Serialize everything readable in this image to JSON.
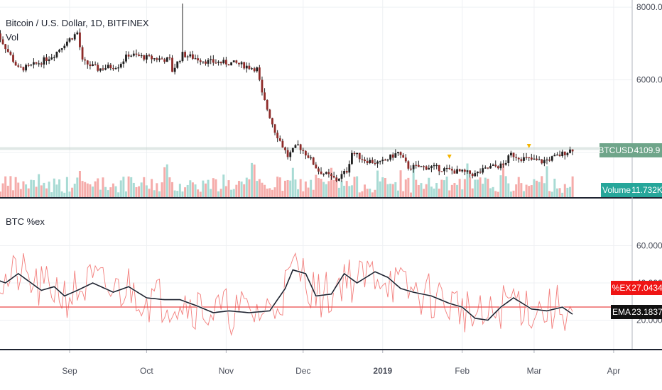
{
  "chart_data": [
    {
      "type": "candlestick",
      "title": "Bitcoin / U.S. Dollar, 1D, BITFINEX",
      "indicator_label": "Vol",
      "x_tick_labels": [
        "Sep",
        "Oct",
        "Nov",
        "Dec",
        "2019",
        "Feb",
        "Mar",
        "Apr"
      ],
      "y_tick_labels": [
        "8000.0",
        "6000.0"
      ],
      "ylim": [
        3000,
        8000
      ],
      "grid": true,
      "series": [
        {
          "name": "BTCUSD",
          "close_path": [
            [
              "2018-08-03",
              7400
            ],
            [
              "2018-08-07",
              6900
            ],
            [
              "2018-08-12",
              6300
            ],
            [
              "2018-08-16",
              6350
            ],
            [
              "2018-08-21",
              6500
            ],
            [
              "2018-08-26",
              6700
            ],
            [
              "2018-08-30",
              7000
            ],
            [
              "2018-09-04",
              7300
            ],
            [
              "2018-09-06",
              6500
            ],
            [
              "2018-09-12",
              6300
            ],
            [
              "2018-09-20",
              6400
            ],
            [
              "2018-09-24",
              6700
            ],
            [
              "2018-10-02",
              6600
            ],
            [
              "2018-10-10",
              6550
            ],
            [
              "2018-10-11",
              6250
            ],
            [
              "2018-10-15",
              6700
            ],
            [
              "2018-10-25",
              6500
            ],
            [
              "2018-11-05",
              6450
            ],
            [
              "2018-11-13",
              6300
            ],
            [
              "2018-11-15",
              5600
            ],
            [
              "2018-11-20",
              4600
            ],
            [
              "2018-11-25",
              3900
            ],
            [
              "2018-11-29",
              4200
            ],
            [
              "2018-12-03",
              3900
            ],
            [
              "2018-12-07",
              3500
            ],
            [
              "2018-12-14",
              3250
            ],
            [
              "2018-12-18",
              3500
            ],
            [
              "2018-12-20",
              4000
            ],
            [
              "2018-12-25",
              3800
            ],
            [
              "2018-12-31",
              3700
            ],
            [
              "2019-01-07",
              4000
            ],
            [
              "2019-01-11",
              3600
            ],
            [
              "2019-01-20",
              3600
            ],
            [
              "2019-01-28",
              3500
            ],
            [
              "2019-02-06",
              3400
            ],
            [
              "2019-02-12",
              3600
            ],
            [
              "2019-02-17",
              3650
            ],
            [
              "2019-02-20",
              3950
            ],
            [
              "2019-02-24",
              3850
            ],
            [
              "2019-03-04",
              3750
            ],
            [
              "2019-03-10",
              3900
            ],
            [
              "2019-03-16",
              4100
            ]
          ],
          "last_value": "4109.9"
        },
        {
          "name": "Volume",
          "last_value": "11.732K"
        }
      ]
    },
    {
      "type": "line",
      "title": "BTC %ex",
      "x_tick_labels": [
        "Sep",
        "Oct",
        "Nov",
        "Dec",
        "2019",
        "Feb",
        "Mar",
        "Apr"
      ],
      "y_tick_labels": [
        "60.0000",
        "40.0000",
        "20.0000"
      ],
      "ylim": [
        10,
        65
      ],
      "reference_value": 27.0434,
      "series": [
        {
          "name": "%EX",
          "last_value": "27.0434"
        },
        {
          "name": "EMA",
          "values": [
            [
              "2018-08-03",
              42
            ],
            [
              "2018-08-07",
              40
            ],
            [
              "2018-08-12",
              45
            ],
            [
              "2018-08-16",
              41
            ],
            [
              "2018-08-21",
              36
            ],
            [
              "2018-08-26",
              38
            ],
            [
              "2018-08-30",
              33
            ],
            [
              "2018-09-04",
              36
            ],
            [
              "2018-09-10",
              40
            ],
            [
              "2018-09-18",
              35
            ],
            [
              "2018-09-24",
              38
            ],
            [
              "2018-10-01",
              32
            ],
            [
              "2018-10-08",
              31
            ],
            [
              "2018-10-14",
              31
            ],
            [
              "2018-10-20",
              28
            ],
            [
              "2018-10-27",
              24
            ],
            [
              "2018-11-02",
              25
            ],
            [
              "2018-11-10",
              24
            ],
            [
              "2018-11-18",
              25
            ],
            [
              "2018-11-24",
              37
            ],
            [
              "2018-11-27",
              47
            ],
            [
              "2018-12-02",
              45
            ],
            [
              "2018-12-06",
              33
            ],
            [
              "2018-12-12",
              34
            ],
            [
              "2018-12-17",
              45
            ],
            [
              "2018-12-22",
              40
            ],
            [
              "2018-12-29",
              46
            ],
            [
              "2019-01-03",
              43
            ],
            [
              "2019-01-08",
              37
            ],
            [
              "2019-01-13",
              35
            ],
            [
              "2019-01-20",
              33
            ],
            [
              "2019-01-27",
              29
            ],
            [
              "2019-02-01",
              27
            ],
            [
              "2019-02-06",
              21
            ],
            [
              "2019-02-11",
              20
            ],
            [
              "2019-02-16",
              27
            ],
            [
              "2019-02-21",
              32
            ],
            [
              "2019-02-28",
              26
            ],
            [
              "2019-03-06",
              25
            ],
            [
              "2019-03-12",
              27
            ],
            [
              "2019-03-16",
              23.2
            ]
          ],
          "last_value": "23.1837"
        }
      ]
    }
  ],
  "colors": {
    "up": "#26a69a",
    "down": "#ef5350",
    "volume_up": "#9fd7cf",
    "volume_down": "#f4a3a1",
    "ohlc_bar": "#1f1f1f",
    "price_down_body": "#8e2a28",
    "price_tag": "#6fa58a",
    "volume_tag": "#26a69a",
    "ex_line": "#ef5350",
    "ema_line": "#1e2330",
    "ex_tag": "#ef1515",
    "ema_tag": "#111111",
    "signal_marker": "#f5b400"
  }
}
